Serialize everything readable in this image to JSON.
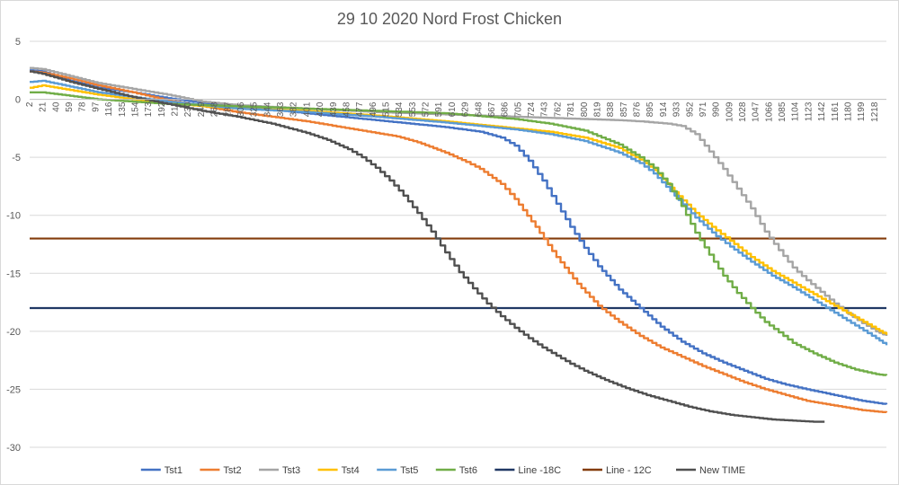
{
  "chart_data": {
    "type": "line",
    "title": "29 10 2020 Nord Frost Chicken",
    "xlabel": "",
    "ylabel": "",
    "ylim": [
      -30,
      5
    ],
    "y_ticks": [
      5,
      0,
      -5,
      -10,
      -15,
      -20,
      -25,
      -30
    ],
    "x_range": [
      2,
      1235
    ],
    "x_tick_labels": [
      "2",
      "21",
      "40",
      "59",
      "78",
      "97",
      "116",
      "135",
      "154",
      "173",
      "192",
      "211",
      "230",
      "249",
      "268",
      "287",
      "306",
      "325",
      "344",
      "363",
      "382",
      "401",
      "420",
      "439",
      "458",
      "477",
      "496",
      "515",
      "534",
      "553",
      "572",
      "591",
      "610",
      "629",
      "648",
      "667",
      "686",
      "705",
      "724",
      "743",
      "762",
      "781",
      "800",
      "819",
      "838",
      "857",
      "876",
      "895",
      "914",
      "933",
      "952",
      "971",
      "990",
      "1009",
      "1028",
      "1047",
      "1066",
      "1085",
      "1104",
      "1123",
      "1142",
      "1161",
      "1180",
      "1199",
      "1218"
    ],
    "grid": true,
    "legend_position": "bottom",
    "series": [
      {
        "name": "Tst1",
        "color": "#4472C4",
        "x": [
          2,
          20,
          60,
          100,
          150,
          200,
          250,
          300,
          350,
          400,
          450,
          500,
          550,
          600,
          650,
          680,
          700,
          720,
          740,
          760,
          780,
          800,
          820,
          850,
          880,
          910,
          940,
          970,
          1000,
          1030,
          1060,
          1090,
          1120,
          1160,
          1200,
          1235
        ],
        "y": [
          2.5,
          2.4,
          1.6,
          1.0,
          0.6,
          0.1,
          -0.3,
          -0.6,
          -0.9,
          -1.2,
          -1.5,
          -1.8,
          -2.1,
          -2.4,
          -2.8,
          -3.3,
          -4.0,
          -5.3,
          -7.0,
          -9.0,
          -11.0,
          -12.8,
          -14.4,
          -16.4,
          -18.0,
          -19.6,
          -20.9,
          -21.9,
          -22.7,
          -23.4,
          -24.1,
          -24.6,
          -25.0,
          -25.5,
          -26.0,
          -26.3
        ]
      },
      {
        "name": "Tst2",
        "color": "#ED7D31",
        "x": [
          2,
          20,
          60,
          100,
          150,
          200,
          250,
          300,
          350,
          400,
          450,
          500,
          530,
          560,
          600,
          630,
          650,
          680,
          700,
          730,
          760,
          790,
          820,
          850,
          880,
          910,
          940,
          970,
          1000,
          1030,
          1060,
          1090,
          1120,
          1160,
          1200,
          1235
        ],
        "y": [
          2.4,
          2.3,
          1.8,
          1.2,
          0.6,
          -0.1,
          -0.6,
          -1.1,
          -1.5,
          -1.9,
          -2.4,
          -2.9,
          -3.2,
          -3.7,
          -4.6,
          -5.4,
          -6.0,
          -7.3,
          -8.6,
          -11.0,
          -13.6,
          -15.9,
          -17.8,
          -19.2,
          -20.4,
          -21.4,
          -22.2,
          -23.0,
          -23.7,
          -24.4,
          -25.0,
          -25.5,
          -26.0,
          -26.4,
          -26.8,
          -27.0
        ]
      },
      {
        "name": "Tst3",
        "color": "#A5A5A5",
        "x": [
          2,
          20,
          60,
          100,
          150,
          200,
          250,
          300,
          400,
          500,
          600,
          700,
          800,
          850,
          880,
          900,
          920,
          940,
          960,
          980,
          1000,
          1020,
          1040,
          1060,
          1080,
          1100,
          1120,
          1140,
          1160,
          1180,
          1200,
          1220,
          1235
        ],
        "y": [
          2.7,
          2.6,
          2.0,
          1.4,
          0.9,
          0.4,
          -0.2,
          -0.5,
          -0.8,
          -1.1,
          -1.3,
          -1.5,
          -1.7,
          -1.8,
          -1.9,
          -2.0,
          -2.1,
          -2.3,
          -3.0,
          -4.5,
          -6.0,
          -7.7,
          -9.4,
          -11.4,
          -13.0,
          -14.5,
          -15.6,
          -16.6,
          -17.6,
          -18.5,
          -19.3,
          -20.0,
          -20.4
        ]
      },
      {
        "name": "Tst4",
        "color": "#FFC000",
        "x": [
          2,
          20,
          60,
          100,
          150,
          200,
          250,
          300,
          400,
          500,
          600,
          700,
          750,
          800,
          850,
          880,
          900,
          930,
          960,
          990,
          1010,
          1040,
          1070,
          1100,
          1130,
          1160,
          1190,
          1220,
          1235
        ],
        "y": [
          1.0,
          1.2,
          0.8,
          0.4,
          0.0,
          -0.3,
          -0.6,
          -0.8,
          -1.0,
          -1.4,
          -1.9,
          -2.5,
          -2.8,
          -3.3,
          -4.2,
          -5.2,
          -6.1,
          -8.0,
          -9.8,
          -11.3,
          -12.2,
          -13.6,
          -14.8,
          -15.8,
          -16.8,
          -17.8,
          -18.8,
          -19.8,
          -20.3
        ]
      },
      {
        "name": "Tst5",
        "color": "#5B9BD5",
        "x": [
          2,
          20,
          60,
          100,
          150,
          200,
          250,
          300,
          400,
          500,
          600,
          700,
          750,
          800,
          850,
          880,
          900,
          930,
          960,
          990,
          1010,
          1040,
          1070,
          1100,
          1130,
          1160,
          1190,
          1220,
          1235
        ],
        "y": [
          1.5,
          1.6,
          1.1,
          0.6,
          0.2,
          -0.2,
          -0.5,
          -0.8,
          -1.1,
          -1.5,
          -2.0,
          -2.6,
          -3.0,
          -3.6,
          -4.6,
          -5.5,
          -6.4,
          -8.3,
          -10.2,
          -11.8,
          -12.7,
          -14.0,
          -15.2,
          -16.2,
          -17.3,
          -18.4,
          -19.5,
          -20.6,
          -21.2
        ]
      },
      {
        "name": "Tst6",
        "color": "#70AD47",
        "x": [
          2,
          20,
          60,
          100,
          150,
          200,
          250,
          300,
          400,
          500,
          600,
          700,
          750,
          800,
          850,
          880,
          900,
          920,
          940,
          960,
          980,
          1000,
          1020,
          1040,
          1060,
          1080,
          1100,
          1130,
          1160,
          1190,
          1220,
          1235
        ],
        "y": [
          0.6,
          0.6,
          0.3,
          0.0,
          -0.2,
          -0.4,
          -0.5,
          -0.6,
          -0.8,
          -1.0,
          -1.2,
          -1.7,
          -2.1,
          -2.7,
          -3.9,
          -5.0,
          -5.9,
          -7.3,
          -9.2,
          -11.5,
          -13.4,
          -15.2,
          -16.7,
          -18.0,
          -19.2,
          -20.1,
          -21.0,
          -21.9,
          -22.7,
          -23.3,
          -23.7,
          -23.8
        ]
      },
      {
        "name": "Line -18C",
        "color": "#203864",
        "x": [
          2,
          1235
        ],
        "y": [
          -18,
          -18
        ]
      },
      {
        "name": "Line - 12C",
        "color": "#833C0B",
        "x": [
          2,
          1235
        ],
        "y": [
          -12,
          -12
        ]
      },
      {
        "name": "New TIME",
        "color": "#505050",
        "x": [
          2,
          20,
          60,
          100,
          150,
          200,
          250,
          300,
          350,
          400,
          430,
          460,
          480,
          500,
          520,
          540,
          560,
          580,
          600,
          620,
          640,
          660,
          680,
          700,
          720,
          740,
          760,
          780,
          800,
          830,
          860,
          890,
          920,
          950,
          980,
          1010,
          1040,
          1070,
          1100,
          1130,
          1146
        ],
        "y": [
          2.4,
          2.2,
          1.5,
          0.9,
          0.2,
          -0.4,
          -1.0,
          -1.5,
          -2.1,
          -2.9,
          -3.5,
          -4.3,
          -5.0,
          -5.9,
          -7.0,
          -8.3,
          -9.8,
          -11.4,
          -13.2,
          -14.9,
          -16.3,
          -17.6,
          -18.7,
          -19.7,
          -20.6,
          -21.4,
          -22.1,
          -22.8,
          -23.4,
          -24.2,
          -24.9,
          -25.5,
          -26.0,
          -26.5,
          -26.9,
          -27.2,
          -27.4,
          -27.6,
          -27.7,
          -27.8,
          -27.8
        ]
      }
    ]
  }
}
